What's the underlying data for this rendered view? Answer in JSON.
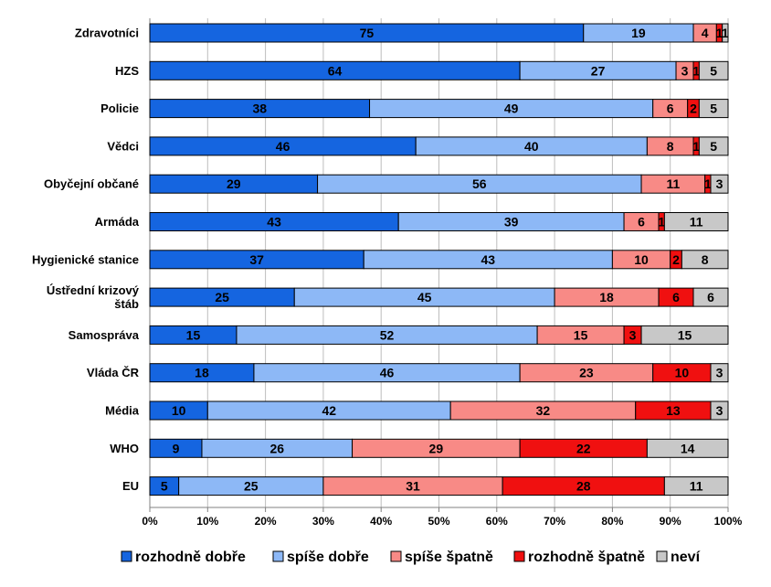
{
  "chart_data": {
    "type": "bar",
    "orientation": "horizontal",
    "stacked": true,
    "percent": true,
    "categories": [
      "Zdravotníci",
      "HZS",
      "Policie",
      "Vědci",
      "Obyčejní občané",
      "Armáda",
      "Hygienické stanice",
      "Ústřední krizový štáb",
      "Samospráva",
      "Vláda ČR",
      "Média",
      "WHO",
      "EU"
    ],
    "series": [
      {
        "name": "rozhodně dobře",
        "color": "#1565e0",
        "values": [
          75,
          64,
          38,
          46,
          29,
          43,
          37,
          25,
          15,
          18,
          10,
          9,
          5
        ]
      },
      {
        "name": "spíše dobře",
        "color": "#8db8f6",
        "values": [
          19,
          27,
          49,
          40,
          56,
          39,
          43,
          45,
          52,
          46,
          42,
          26,
          25
        ]
      },
      {
        "name": "spíše špatně",
        "color": "#f88a86",
        "values": [
          4,
          3,
          6,
          8,
          11,
          6,
          10,
          18,
          15,
          23,
          32,
          29,
          31
        ]
      },
      {
        "name": "rozhodně špatně",
        "color": "#f01010",
        "values": [
          1,
          1,
          2,
          1,
          1,
          1,
          2,
          6,
          3,
          10,
          13,
          22,
          28
        ]
      },
      {
        "name": "neví",
        "color": "#c8c8c8",
        "values": [
          1,
          5,
          5,
          5,
          3,
          11,
          8,
          6,
          15,
          3,
          3,
          14,
          11
        ]
      }
    ],
    "x_ticks": [
      "0%",
      "10%",
      "20%",
      "30%",
      "40%",
      "50%",
      "60%",
      "70%",
      "80%",
      "90%",
      "100%"
    ],
    "xlim": [
      0,
      100
    ],
    "grid": "vertical",
    "legend_position": "bottom",
    "title": "",
    "xlabel": "",
    "ylabel": ""
  }
}
